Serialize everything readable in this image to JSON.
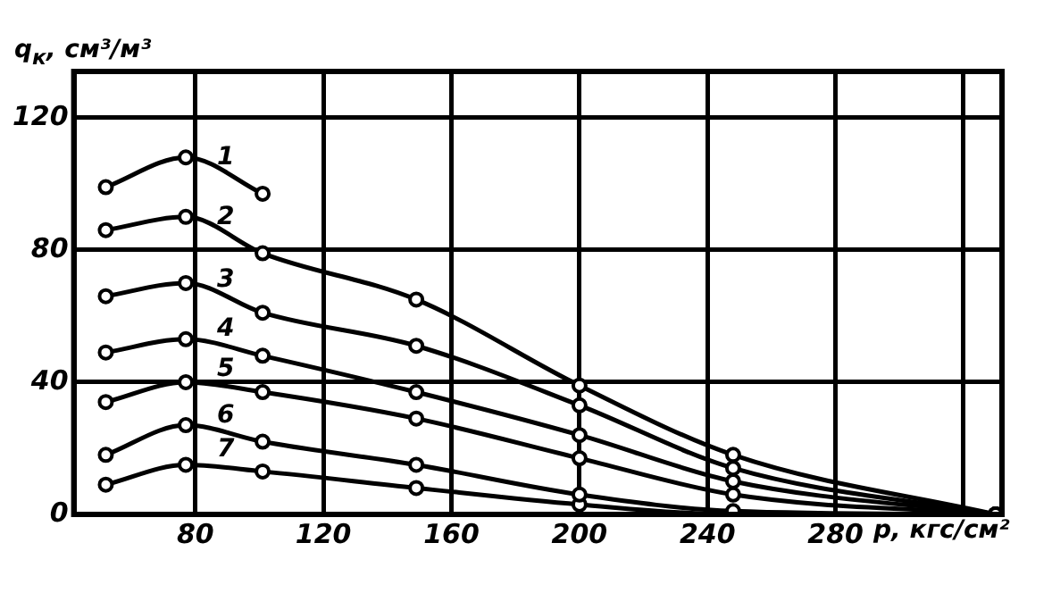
{
  "chart_data": {
    "type": "line",
    "xlabel": "p, кгс/см²",
    "ylabel": "q$_{к}$, см³/м³",
    "xlim": [
      42,
      332
    ],
    "ylim": [
      0,
      134
    ],
    "xticks": [
      80,
      120,
      160,
      200,
      240,
      280,
      {
        "value": 320,
        "label": null
      }
    ],
    "yticks": [
      0,
      40,
      80,
      120
    ],
    "grid": true,
    "legend": false,
    "marker": "circle",
    "line_style": "solid",
    "series": [
      {
        "name": "1",
        "color": "#000000",
        "x": [
          52,
          77,
          101
        ],
        "values": [
          99,
          108,
          97
        ]
      },
      {
        "name": "2",
        "color": "#000000",
        "x": [
          52,
          77,
          101,
          149,
          200,
          248,
          330
        ],
        "values": [
          86,
          90,
          79,
          65,
          39,
          18,
          0
        ]
      },
      {
        "name": "3",
        "color": "#000000",
        "x": [
          52,
          77,
          101,
          149,
          200,
          248,
          330
        ],
        "values": [
          66,
          70,
          61,
          51,
          33,
          14,
          0
        ]
      },
      {
        "name": "4",
        "color": "#000000",
        "x": [
          52,
          77,
          101,
          149,
          200,
          248,
          330
        ],
        "values": [
          49,
          53,
          48,
          37,
          24,
          10,
          0
        ]
      },
      {
        "name": "5",
        "color": "#000000",
        "x": [
          52,
          77,
          101,
          149,
          200,
          248,
          330
        ],
        "values": [
          34,
          40,
          37,
          29,
          17,
          6,
          0
        ]
      },
      {
        "name": "6",
        "color": "#000000",
        "x": [
          52,
          77,
          101,
          149,
          200,
          248,
          330
        ],
        "values": [
          18,
          27,
          22,
          15,
          6,
          1,
          0
        ]
      },
      {
        "name": "7",
        "color": "#000000",
        "x": [
          52,
          77,
          101,
          149,
          200,
          248,
          330
        ],
        "values": [
          9,
          15,
          13,
          8,
          3,
          0,
          0
        ]
      }
    ]
  }
}
